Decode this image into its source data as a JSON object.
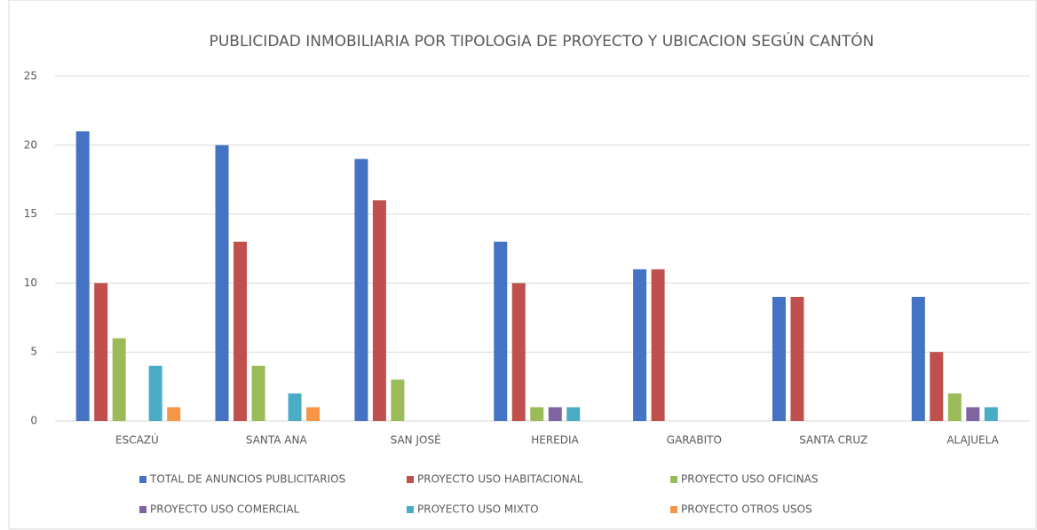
{
  "chart_data": {
    "type": "bar",
    "title": "PUBLICIDAD INMOBILIARIA POR TIPOLOGIA DE PROYECTO Y UBICACION SEGÚN CANTÓN",
    "categories": [
      "ESCAZÚ",
      "SANTA ANA",
      "SAN JOSÉ",
      "HEREDIA",
      "GARABITO",
      "SANTA CRUZ",
      "ALAJUELA"
    ],
    "series": [
      {
        "name": "TOTAL DE ANUNCIOS PUBLICITARIOS",
        "color": "#4472c4",
        "values": [
          21,
          20,
          19,
          13,
          11,
          9,
          9
        ]
      },
      {
        "name": "PROYECTO USO HABITACIONAL",
        "color": "#c0504d",
        "values": [
          10,
          13,
          16,
          10,
          11,
          9,
          5
        ]
      },
      {
        "name": "PROYECTO USO OFICINAS",
        "color": "#9bbb59",
        "values": [
          6,
          4,
          3,
          1,
          0,
          0,
          2
        ]
      },
      {
        "name": "PROYECTO USO COMERCIAL",
        "color": "#8064a2",
        "values": [
          0,
          0,
          0,
          1,
          0,
          0,
          1
        ]
      },
      {
        "name": "PROYECTO USO MIXTO",
        "color": "#4bacc6",
        "values": [
          4,
          2,
          0,
          1,
          0,
          0,
          1
        ]
      },
      {
        "name": "PROYECTO OTROS USOS",
        "color": "#f79646",
        "values": [
          1,
          1,
          0,
          0,
          0,
          0,
          0
        ]
      }
    ],
    "ylim": [
      0,
      25
    ],
    "yticks": [
      0,
      5,
      10,
      15,
      20,
      25
    ],
    "grid": true,
    "legend": "bottom"
  }
}
